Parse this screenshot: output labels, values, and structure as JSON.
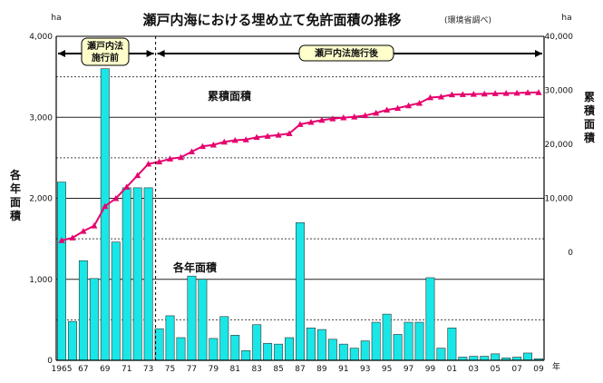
{
  "chart_data": {
    "type": "bar+line",
    "title": "瀬戸内海における埋め立て免許面積の推移",
    "subtitle": "(環境省調べ)",
    "left_unit": "ha",
    "right_unit": "ha",
    "left_axis_label": "各年面積",
    "right_axis_label": "累積面積",
    "bar_series_name": "各年面積",
    "line_series_name": "累積面積",
    "x_year_suffix": "年",
    "period_labels": [
      "瀬戸内法\n施行前",
      "瀬戸内法施行後"
    ],
    "left_ticks": [
      "0",
      "1,000",
      "2,000",
      "3,000",
      "4,000"
    ],
    "left_ylim": [
      0,
      4000
    ],
    "right_ticks": [
      "0",
      "10,000",
      "20,000",
      "30,000",
      "40,000"
    ],
    "right_ylim": [
      -20000,
      40000
    ],
    "grid": true,
    "colors": {
      "bar": "#19E6E6",
      "bar_border": "#333333",
      "line": "#E6006E",
      "marker": "#E6006E"
    },
    "x_tick_labels": [
      "1965",
      "67",
      "69",
      "71",
      "73",
      "75",
      "77",
      "79",
      "81",
      "83",
      "85",
      "87",
      "89",
      "91",
      "93",
      "95",
      "97",
      "99",
      "01",
      "03",
      "05",
      "07",
      "09"
    ],
    "years": [
      1965,
      1966,
      1967,
      1968,
      1969,
      1970,
      1971,
      1972,
      1973,
      1974,
      1975,
      1976,
      1977,
      1978,
      1979,
      1980,
      1981,
      1982,
      1983,
      1984,
      1985,
      1986,
      1987,
      1988,
      1989,
      1990,
      1991,
      1992,
      1993,
      1994,
      1995,
      1996,
      1997,
      1998,
      1999,
      2000,
      2001,
      2002,
      2003,
      2004,
      2005,
      2006,
      2007,
      2008,
      2009
    ],
    "annual": [
      2200,
      480,
      1230,
      1010,
      3600,
      1460,
      2130,
      2130,
      2130,
      390,
      550,
      280,
      1040,
      1000,
      270,
      540,
      310,
      120,
      440,
      210,
      200,
      280,
      1700,
      400,
      380,
      260,
      200,
      150,
      240,
      470,
      570,
      320,
      470,
      470,
      1020,
      150,
      400,
      40,
      50,
      50,
      80,
      30,
      40,
      90,
      20
    ],
    "cumulative": [
      2200,
      2680,
      3910,
      4920,
      8520,
      9980,
      12110,
      14240,
      16370,
      16760,
      17310,
      17590,
      18630,
      19630,
      19900,
      20440,
      20750,
      20870,
      21310,
      21520,
      21720,
      22000,
      23700,
      24100,
      24480,
      24740,
      24940,
      25090,
      25330,
      25800,
      26370,
      26690,
      27160,
      27630,
      28650,
      28800,
      29200,
      29240,
      29290,
      29340,
      29420,
      29450,
      29490,
      29580,
      29600
    ]
  }
}
